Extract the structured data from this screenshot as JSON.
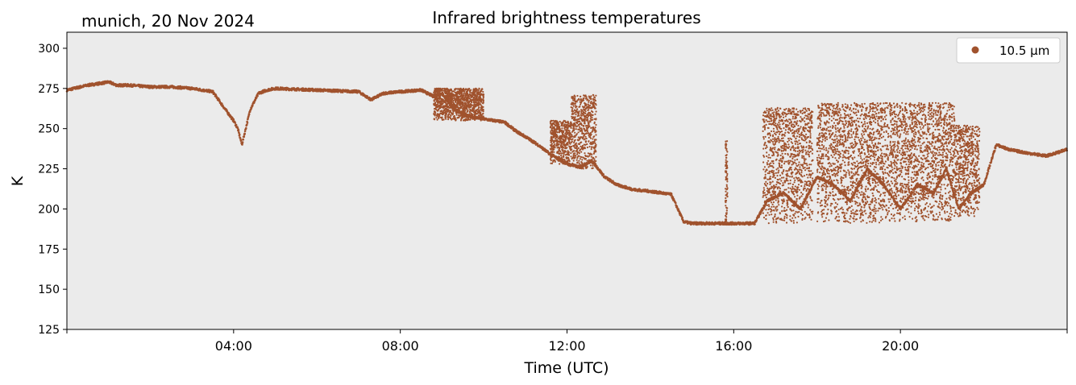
{
  "header": {
    "location_date": "munich, 20 Nov 2024"
  },
  "chart_data": {
    "type": "scatter",
    "title": "Infrared brightness temperatures",
    "xlabel": "Time (UTC)",
    "ylabel": "K",
    "xlim_hours": [
      0,
      24
    ],
    "ylim": [
      125,
      310
    ],
    "xticks": [
      {
        "hour": 4,
        "label": "04:00"
      },
      {
        "hour": 8,
        "label": "08:00"
      },
      {
        "hour": 12,
        "label": "12:00"
      },
      {
        "hour": 16,
        "label": "16:00"
      },
      {
        "hour": 20,
        "label": "20:00"
      }
    ],
    "yticks": [
      125,
      150,
      175,
      200,
      225,
      250,
      275,
      300
    ],
    "grid": false,
    "legend_position": "top-right",
    "plot_background": "#ebebeb",
    "series": [
      {
        "name": "10.5 µm",
        "color": "#a0522d",
        "hours": [
          0,
          0.5,
          1.0,
          1.2,
          1.5,
          2.0,
          2.5,
          3.0,
          3.5,
          3.8,
          4.0,
          4.1,
          4.2,
          4.4,
          4.6,
          4.8,
          5.0,
          6.0,
          7.0,
          7.3,
          7.6,
          8.0,
          8.5,
          8.8,
          9.0,
          9.3,
          9.6,
          10.0,
          10.5,
          10.8,
          11.0,
          11.3,
          11.6,
          12.0,
          12.3,
          12.6,
          12.9,
          13.2,
          13.6,
          14.0,
          14.5,
          14.8,
          15.0,
          15.5,
          16.0,
          16.5,
          16.8,
          17.2,
          17.6,
          18.0,
          18.4,
          18.8,
          19.2,
          19.6,
          20.0,
          20.4,
          20.8,
          21.1,
          21.4,
          21.7,
          22.0,
          22.3,
          22.6,
          23.0,
          23.5,
          24.0
        ],
        "values": [
          274,
          277,
          279,
          277,
          277,
          276,
          276,
          275,
          273,
          262,
          255,
          250,
          240,
          262,
          272,
          274,
          275,
          274,
          273,
          268,
          272,
          273,
          274,
          270,
          272,
          262,
          258,
          256,
          254,
          248,
          245,
          240,
          234,
          228,
          226,
          230,
          220,
          215,
          212,
          211,
          209,
          192,
          191,
          191,
          191,
          191,
          205,
          210,
          200,
          220,
          215,
          205,
          225,
          215,
          200,
          215,
          210,
          225,
          200,
          210,
          215,
          240,
          237,
          235,
          233,
          237
        ],
        "scatter_bands": [
          {
            "from_hour": 8.8,
            "to_hour": 10.0,
            "low": 255,
            "high": 275
          },
          {
            "from_hour": 11.6,
            "to_hour": 12.1,
            "low": 228,
            "high": 255
          },
          {
            "from_hour": 12.1,
            "to_hour": 12.7,
            "low": 225,
            "high": 271
          },
          {
            "from_hour": 15.8,
            "to_hour": 15.85,
            "low": 192,
            "high": 244
          },
          {
            "from_hour": 16.7,
            "to_hour": 17.9,
            "low": 191,
            "high": 263
          },
          {
            "from_hour": 18.0,
            "to_hour": 20.5,
            "low": 191,
            "high": 266
          },
          {
            "from_hour": 20.5,
            "to_hour": 21.3,
            "low": 192,
            "high": 266
          },
          {
            "from_hour": 21.3,
            "to_hour": 21.9,
            "low": 195,
            "high": 252
          }
        ]
      }
    ]
  }
}
